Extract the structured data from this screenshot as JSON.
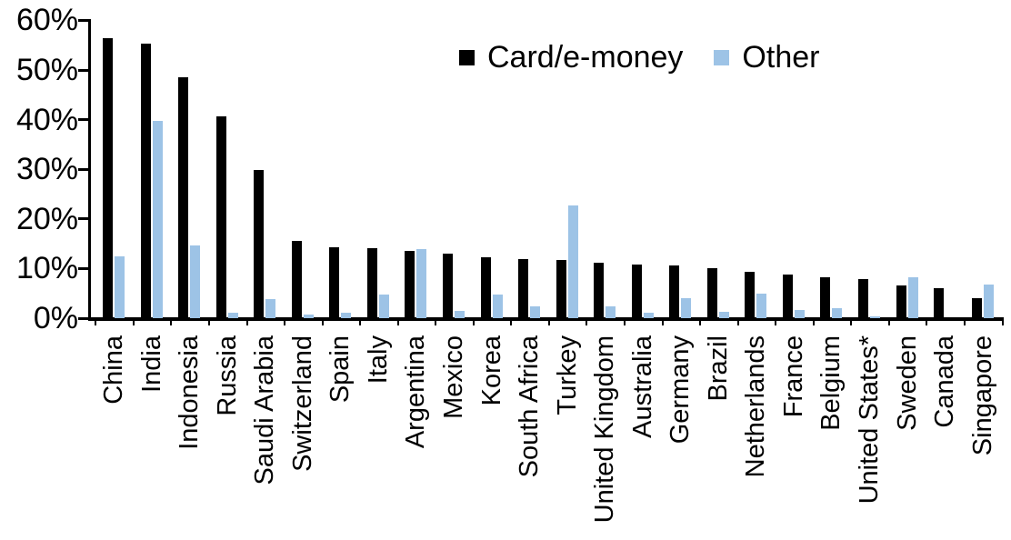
{
  "chart_data": {
    "type": "bar",
    "title": "",
    "xlabel": "",
    "ylabel": "",
    "ylim": [
      0,
      60
    ],
    "ytick_step": 10,
    "ytick_labels": [
      "0%",
      "10%",
      "20%",
      "30%",
      "40%",
      "50%",
      "60%"
    ],
    "grid": false,
    "legend_position": "top-center",
    "categories": [
      "China",
      "India",
      "Indonesia",
      "Russia",
      "Saudi Arabia",
      "Switzerland",
      "Spain",
      "Italy",
      "Argentina",
      "Mexico",
      "Korea",
      "South Africa",
      "Turkey",
      "United Kingdom",
      "Australia",
      "Germany",
      "Brazil",
      "Netherlands",
      "France",
      "Belgium",
      "United States*",
      "Sweden",
      "Canada",
      "Singapore"
    ],
    "series": [
      {
        "name": "Card/e-money",
        "color": "#000000",
        "values": [
          56.4,
          55.3,
          48.5,
          40.6,
          29.8,
          15.6,
          14.3,
          14.1,
          13.5,
          13.0,
          12.2,
          11.9,
          11.7,
          11.1,
          10.8,
          10.7,
          10.1,
          9.3,
          8.8,
          8.2,
          7.9,
          6.6,
          6.0,
          4.0
        ]
      },
      {
        "name": "Other",
        "color": "#9DC3E6",
        "values": [
          12.4,
          39.8,
          14.7,
          1.1,
          3.9,
          0.8,
          1.1,
          4.8,
          13.9,
          1.4,
          4.7,
          2.4,
          22.8,
          2.3,
          1.1,
          4.0,
          1.2,
          5.0,
          1.7,
          2.0,
          0.3,
          8.3,
          0.0,
          6.7
        ]
      }
    ]
  },
  "colors": {
    "axis": "#000000",
    "background": "#ffffff"
  }
}
